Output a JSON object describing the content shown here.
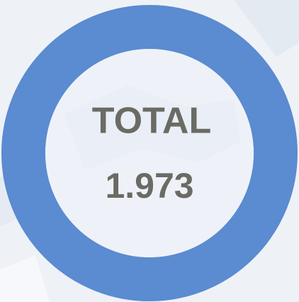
{
  "total": {
    "label": "TOTAL",
    "value": "1.973"
  }
}
